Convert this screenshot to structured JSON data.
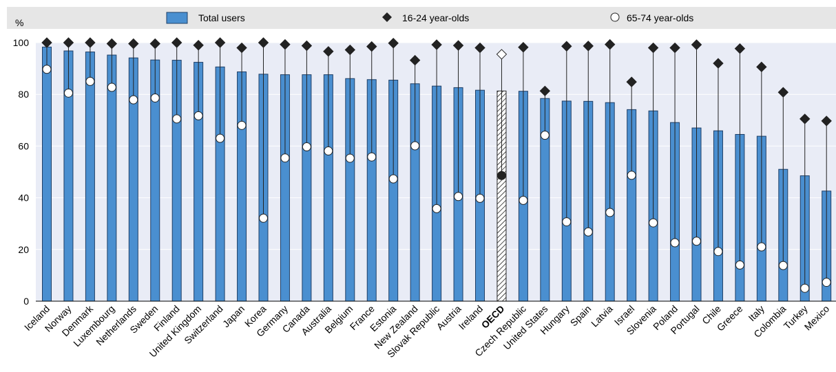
{
  "chart_data": {
    "type": "bar",
    "y_unit": "%",
    "ylim": [
      0,
      100
    ],
    "yticks": [
      0,
      20,
      40,
      60,
      80,
      100
    ],
    "grid": true,
    "legend_position": "top",
    "colors": {
      "bar": "#4a8fd0",
      "bar_border": "#1f3f66",
      "plot_bg": "#e9ecf6",
      "gridline": "#ffffff",
      "legend_bg": "#e6e6e6",
      "marker_dark": "#222222",
      "marker_light": "#ffffff"
    },
    "legend": [
      {
        "label": "Total users",
        "marker": "bar"
      },
      {
        "label": "16-24 year-olds",
        "marker": "diamond"
      },
      {
        "label": "65-74 year-olds",
        "marker": "circle"
      }
    ],
    "highlight_category": "OECD",
    "categories": [
      "Iceland",
      "Norway",
      "Denmark",
      "Luxembourg",
      "Netherlands",
      "Sweden",
      "Finland",
      "United Kingdom",
      "Switzerland",
      "Japan",
      "Korea",
      "Germany",
      "Canada",
      "Australia",
      "Belgium",
      "France",
      "Estonia",
      "New Zealand",
      "Slovak Republic",
      "Austria",
      "Ireland",
      "OECD",
      "Czech Republic",
      "United States",
      "Hungary",
      "Spain",
      "Latvia",
      "Israel",
      "Slovenia",
      "Poland",
      "Portugal",
      "Chile",
      "Greece",
      "Italy",
      "Colombia",
      "Turkey",
      "Mexico"
    ],
    "series": [
      {
        "name": "Total users",
        "values": [
          98.3,
          96.8,
          96.4,
          95.2,
          94.1,
          93.3,
          93.2,
          92.4,
          90.6,
          88.7,
          87.8,
          87.6,
          87.6,
          87.6,
          86.1,
          85.7,
          85.5,
          84.1,
          83.2,
          82.6,
          81.6,
          81.3,
          81.2,
          78.4,
          77.4,
          77.3,
          76.8,
          74.1,
          73.6,
          69.1,
          67.0,
          65.9,
          64.5,
          63.8,
          51.0,
          48.5,
          42.6
        ]
      },
      {
        "name": "16-24 year-olds",
        "values": [
          100,
          100,
          100,
          99.6,
          99.6,
          99.6,
          100,
          99.0,
          100,
          98.0,
          100,
          99.3,
          98.8,
          96.6,
          97.2,
          98.5,
          99.8,
          93.2,
          99.2,
          98.9,
          98.0,
          95.5,
          98.2,
          81.3,
          98.6,
          98.7,
          99.3,
          84.8,
          98.0,
          98.0,
          99.2,
          92.0,
          97.7,
          90.6,
          80.8,
          70.5,
          69.7
        ]
      },
      {
        "name": "65-74 year-olds",
        "values": [
          89.7,
          80.5,
          85.0,
          82.7,
          77.9,
          78.6,
          70.5,
          71.7,
          63.0,
          68.0,
          32.1,
          55.4,
          59.7,
          58.1,
          55.3,
          55.8,
          47.3,
          60.1,
          35.8,
          40.5,
          39.8,
          48.6,
          39.0,
          64.2,
          30.7,
          26.8,
          34.3,
          48.7,
          30.3,
          22.6,
          23.2,
          19.2,
          14.0,
          21.0,
          13.8,
          5.0,
          7.3
        ]
      }
    ]
  }
}
